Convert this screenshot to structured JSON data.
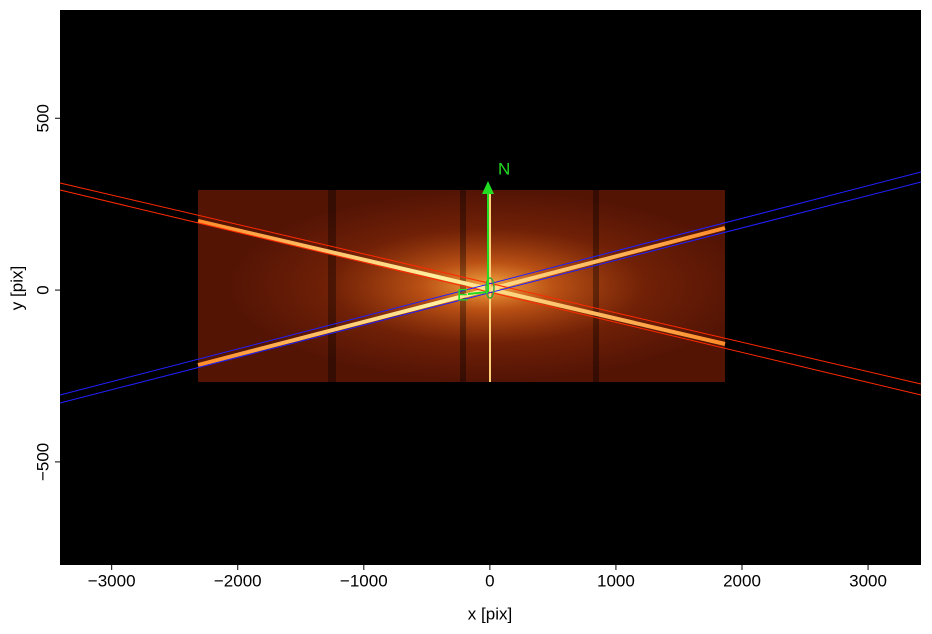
{
  "chart_data": {
    "type": "image",
    "x_label": "x [pix]",
    "y_label": "y [pix]",
    "annotations": [
      "N",
      "E"
    ],
    "xlim": [
      -3410,
      3420
    ],
    "xticks": [
      {
        "value": -3000,
        "label": "−3000"
      },
      {
        "value": -2000,
        "label": "−2000"
      },
      {
        "value": -1000,
        "label": "−1000"
      },
      0,
      1000,
      2000,
      3000
    ],
    "ylim": [
      -800,
      815
    ],
    "yticks": [
      {
        "value": -500,
        "label": "−500"
      },
      0,
      500
    ]
  }
}
